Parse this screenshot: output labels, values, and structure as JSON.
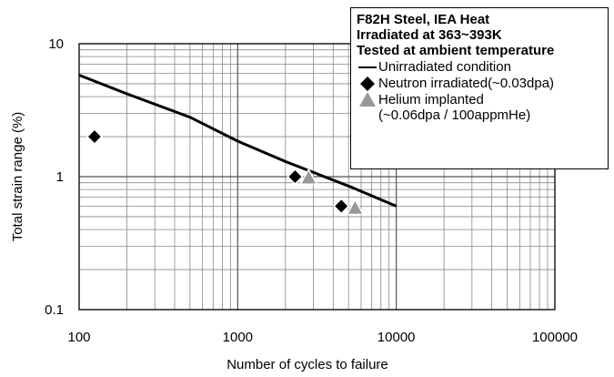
{
  "chart_data": {
    "type": "line",
    "title_lines": [
      "F82H Steel, IEA Heat",
      "Irradiated at 363~393K",
      "Tested at ambient temperature"
    ],
    "x_label": "Number of cycles to failure",
    "y_label": "Total strain range (%)",
    "xlog": true,
    "ylog": true,
    "grid": true,
    "minor_grid": true,
    "xlim": [
      100,
      100000
    ],
    "xticks": [
      100,
      1000,
      10000,
      100000
    ],
    "ylim": [
      0.1,
      10
    ],
    "yticks": [
      0.1,
      1,
      10
    ],
    "legend": "upper right",
    "series": [
      {
        "name": "Unirradiated condition",
        "mode": "line",
        "color": "#000000",
        "x": [
          100,
          200,
          500,
          1000,
          2000,
          5000,
          10000
        ],
        "values": [
          5.8,
          4.2,
          2.8,
          1.85,
          1.3,
          0.85,
          0.6
        ]
      },
      {
        "name": "Neutron irradiated(~0.03dpa)",
        "mode": "markers",
        "marker": "diamond",
        "color": "#000000",
        "x": [
          125,
          2300,
          4500
        ],
        "values": [
          2.0,
          1.0,
          0.6
        ]
      },
      {
        "name": "Helium implanted\n(~0.06dpa / 100appmHe)",
        "mode": "markers",
        "marker": "triangle",
        "color": "#999999",
        "x": [
          2800,
          5500
        ],
        "values": [
          0.98,
          0.58
        ]
      }
    ]
  }
}
